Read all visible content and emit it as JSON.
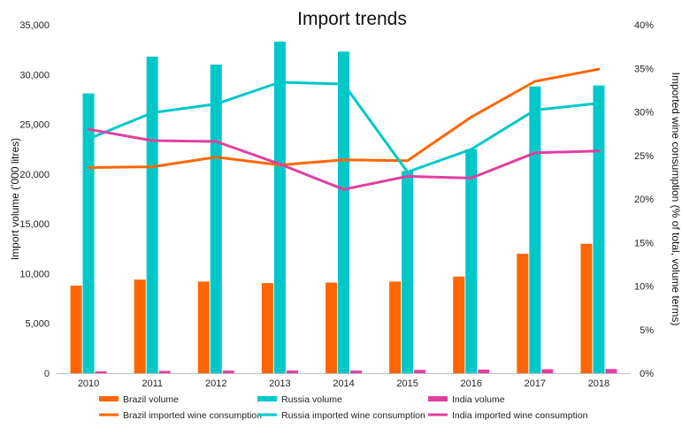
{
  "chart_data": {
    "type": "bar",
    "title": "Import trends",
    "categories": [
      "2010",
      "2011",
      "2012",
      "2013",
      "2014",
      "2015",
      "2016",
      "2017",
      "2018"
    ],
    "ylabel": "Import  volume ('000 litres)",
    "y2label": "Imported wine consumption (% of total, volume terms)",
    "ylim": [
      0,
      35000
    ],
    "y2lim": [
      0,
      0.4
    ],
    "y_ticks": [
      "0",
      "5,000",
      "10,000",
      "15,000",
      "20,000",
      "25,000",
      "30,000",
      "35,000"
    ],
    "y2_ticks": [
      "0%",
      "5%",
      "10%",
      "15%",
      "20%",
      "25%",
      "30%",
      "35%",
      "40%"
    ],
    "grid": false,
    "legend_position": "bottom",
    "bar_series": [
      {
        "name": "Brazil volume",
        "color": "#FF6600",
        "values": [
          8800,
          9400,
          9200,
          9050,
          9100,
          9200,
          9700,
          12000,
          13000
        ]
      },
      {
        "name": "Russia volume",
        "color": "#00C8C8",
        "values": [
          28100,
          31800,
          31000,
          33300,
          32300,
          20300,
          22500,
          28800,
          28900
        ]
      },
      {
        "name": "India volume",
        "color": "#E040A0",
        "values": [
          180,
          230,
          260,
          270,
          260,
          330,
          360,
          400,
          420
        ]
      }
    ],
    "line_series": [
      {
        "name": "Brazil imported wine consumption",
        "color": "#FF6600",
        "values": [
          0.236,
          0.237,
          0.248,
          0.239,
          0.245,
          0.244,
          0.294,
          0.335,
          0.349
        ]
      },
      {
        "name": "Russia imported wine consumption",
        "color": "#00C8C8",
        "values": [
          0.269,
          0.299,
          0.309,
          0.334,
          0.332,
          0.231,
          0.257,
          0.302,
          0.31
        ]
      },
      {
        "name": "India imported wine consumption",
        "color": "#E040A0",
        "values": [
          0.28,
          0.267,
          0.266,
          0.24,
          0.211,
          0.226,
          0.224,
          0.253,
          0.255
        ]
      }
    ]
  }
}
